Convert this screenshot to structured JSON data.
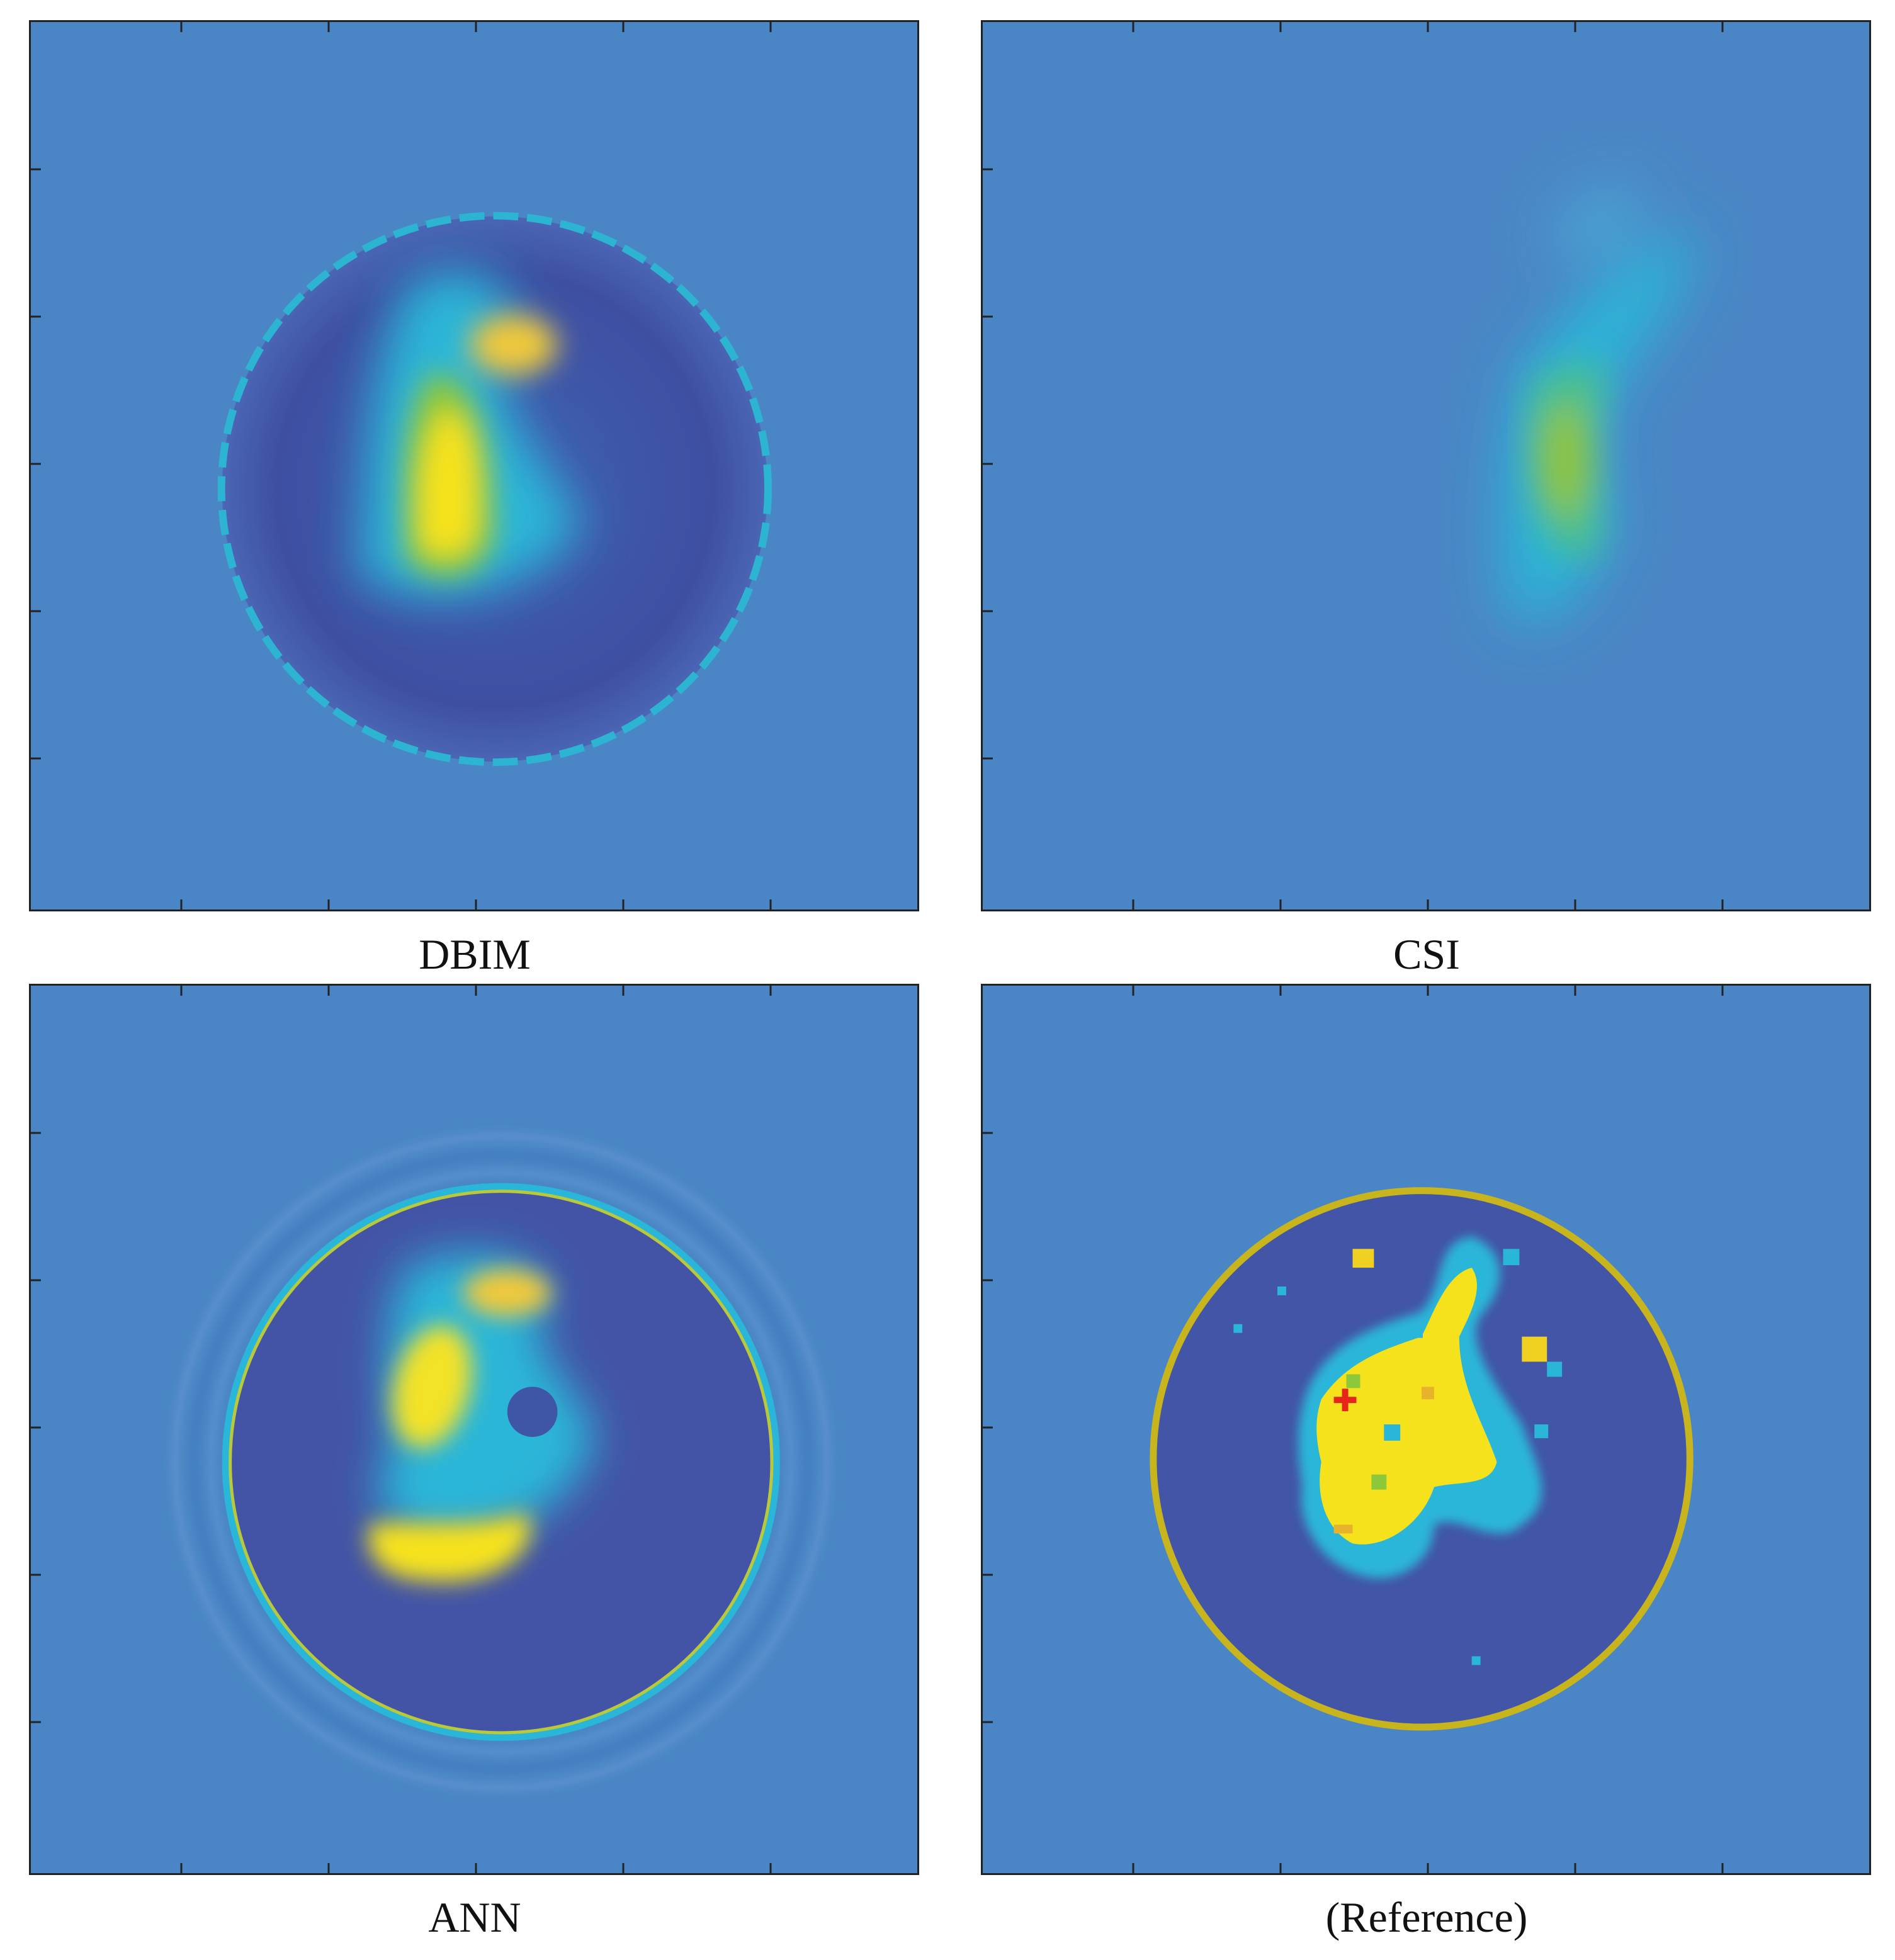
{
  "panels": [
    {
      "caption": "DBIM"
    },
    {
      "caption": "CSI"
    },
    {
      "caption": "ANN"
    },
    {
      "caption": "(Reference)"
    }
  ],
  "colors": {
    "background": "#4a86c5",
    "interior_dark": "#3f4fa3",
    "cyan": "#2ab6d8",
    "green": "#8cc83a",
    "yellow": "#f6e21c",
    "boundary_yellow": "#c8b41c",
    "marker_red": "#e8251a"
  },
  "icons": [
    "red-cross-marker-icon"
  ]
}
